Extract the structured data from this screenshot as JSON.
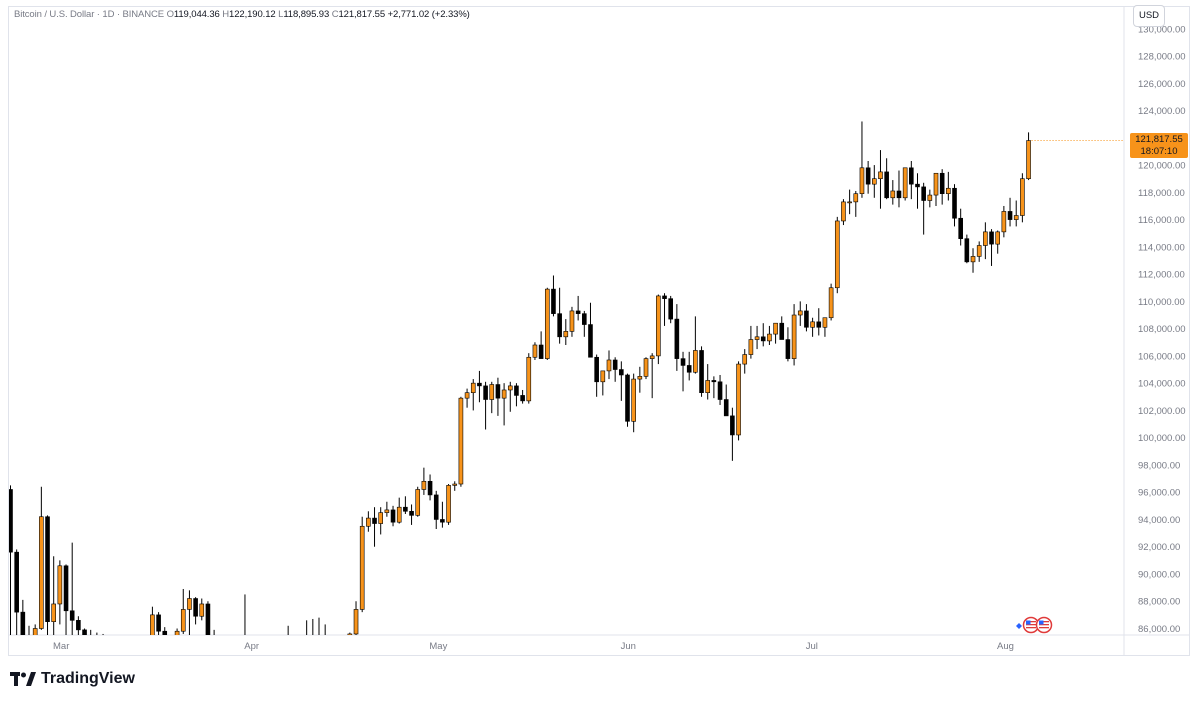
{
  "header": {
    "symbol": "Bitcoin / U.S. Dollar · 1D · BINANCE",
    "open_key": "O",
    "open": "119,044.36",
    "high_key": "H",
    "high": "122,190.12",
    "low_key": "L",
    "low": "118,895.93",
    "close_key": "C",
    "close": "121,817.55",
    "change": "+2,771.02 (+2.33%)"
  },
  "currency_button": "USD",
  "price_tag": {
    "price": "121,817.55",
    "countdown": "18:07:10"
  },
  "brand": "TradingView",
  "colors": {
    "up": "#f7931a",
    "down": "#000000",
    "accent": "#f7931a"
  },
  "chart_data": {
    "type": "candlestick",
    "ylim": [
      84800,
      130800
    ],
    "y_ticks": [
      86000,
      88000,
      90000,
      92000,
      94000,
      96000,
      98000,
      100000,
      102000,
      104000,
      106000,
      108000,
      110000,
      112000,
      114000,
      116000,
      118000,
      120000,
      122000,
      124000,
      126000,
      128000,
      130000
    ],
    "y_tick_labels": [
      "86,000.00",
      "88,000.00",
      "90,000.00",
      "92,000.00",
      "94,000.00",
      "96,000.00",
      "98,000.00",
      "100,000.00",
      "102,000.00",
      "104,000.00",
      "106,000.00",
      "108,000.00",
      "110,000.00",
      "112,000.00",
      "114,000.00",
      "116,000.00",
      "118,000.00",
      "120,000.00",
      "122,000.00",
      "124,000.00",
      "126,000.00",
      "128,000.00",
      "130,000.00"
    ],
    "x_labels": [
      {
        "label": "Mar",
        "index": 3
      },
      {
        "label": "Apr",
        "index": 34
      },
      {
        "label": "May",
        "index": 64
      },
      {
        "label": "Jun",
        "index": 95
      },
      {
        "label": "Jul",
        "index": 125
      },
      {
        "label": "Aug",
        "index": 156
      }
    ],
    "candles": [
      [
        96200,
        96500,
        84500,
        91600
      ],
      [
        91600,
        91800,
        84500,
        87200
      ],
      [
        87200,
        88100,
        84000,
        85300
      ],
      [
        85300,
        86200,
        84000,
        85100
      ],
      [
        85300,
        86300,
        84200,
        86000
      ],
      [
        86000,
        96400,
        85900,
        94200
      ],
      [
        94200,
        94300,
        84000,
        86500
      ],
      [
        86500,
        91300,
        84500,
        87800
      ],
      [
        87800,
        91000,
        86300,
        90600
      ],
      [
        90600,
        90700,
        84500,
        87300
      ],
      [
        87300,
        92300,
        84500,
        86600
      ],
      [
        86600,
        86900,
        84000,
        85900
      ],
      [
        85900,
        86000,
        84200,
        85500
      ],
      [
        85500,
        85900,
        84500,
        85200
      ],
      [
        85200,
        85700,
        84400,
        85000
      ],
      [
        85000,
        85600,
        84300,
        84900
      ],
      [
        84900,
        85300,
        84100,
        84700
      ],
      [
        84700,
        85100,
        84000,
        84900
      ],
      [
        84900,
        85200,
        84100,
        84600
      ],
      [
        84600,
        85100,
        84200,
        84800
      ],
      [
        84800,
        85200,
        84100,
        84900
      ],
      [
        84900,
        85300,
        84300,
        84700
      ],
      [
        84700,
        85100,
        84200,
        84900
      ],
      [
        84900,
        87600,
        84600,
        87000
      ],
      [
        87000,
        87200,
        84500,
        85800
      ],
      [
        85800,
        86100,
        84300,
        85100
      ],
      [
        85100,
        85500,
        84000,
        84700
      ],
      [
        84700,
        86000,
        84500,
        85800
      ],
      [
        85800,
        88900,
        85600,
        87400
      ],
      [
        87400,
        88800,
        85000,
        88200
      ],
      [
        88200,
        88300,
        86300,
        86900
      ],
      [
        86900,
        88200,
        86600,
        87800
      ],
      [
        87800,
        88000,
        84000,
        85500
      ],
      [
        85500,
        85900,
        84600,
        84900
      ],
      [
        84900,
        85300,
        84100,
        84800
      ],
      [
        84800,
        85100,
        84200,
        84900
      ],
      [
        84900,
        85200,
        84000,
        84500
      ],
      [
        84500,
        84900,
        84100,
        84700
      ],
      [
        84700,
        88500,
        84200,
        84800
      ],
      [
        84800,
        85100,
        84000,
        84600
      ],
      [
        84600,
        85000,
        84200,
        84800
      ],
      [
        84800,
        85300,
        84300,
        84700
      ],
      [
        84700,
        85100,
        84000,
        84900
      ],
      [
        84900,
        85200,
        84200,
        84600
      ],
      [
        84600,
        85000,
        84100,
        84800
      ],
      [
        84800,
        86200,
        84500,
        84900
      ],
      [
        84900,
        85300,
        84100,
        84700
      ],
      [
        84700,
        85100,
        84300,
        84800
      ],
      [
        84800,
        86600,
        84400,
        84900
      ],
      [
        84900,
        86700,
        84300,
        85000
      ],
      [
        85000,
        86800,
        84600,
        85200
      ],
      [
        85200,
        86300,
        84600,
        84800
      ],
      [
        84800,
        85300,
        84200,
        84700
      ],
      [
        84700,
        85200,
        84300,
        84900
      ],
      [
        84900,
        85300,
        84400,
        84800
      ],
      [
        84800,
        85700,
        84500,
        85600
      ],
      [
        85600,
        88000,
        85300,
        87400
      ],
      [
        87400,
        94200,
        87200,
        93500
      ],
      [
        93500,
        94600,
        93100,
        94100
      ],
      [
        94100,
        94900,
        92000,
        93700
      ],
      [
        93700,
        94900,
        92900,
        94500
      ],
      [
        94500,
        95300,
        94200,
        94700
      ],
      [
        94700,
        95000,
        93500,
        93800
      ],
      [
        93800,
        95600,
        93700,
        94900
      ],
      [
        94900,
        95700,
        94400,
        94600
      ],
      [
        94600,
        95100,
        93600,
        94300
      ],
      [
        94300,
        96400,
        94200,
        96200
      ],
      [
        96200,
        97800,
        95800,
        96800
      ],
      [
        96800,
        97300,
        95400,
        95800
      ],
      [
        95800,
        96100,
        93300,
        94000
      ],
      [
        94000,
        95300,
        93400,
        93800
      ],
      [
        93800,
        96600,
        93600,
        96500
      ],
      [
        96500,
        96800,
        96100,
        96600
      ],
      [
        96600,
        103000,
        96400,
        102900
      ],
      [
        102900,
        103600,
        102200,
        103300
      ],
      [
        103300,
        104300,
        102000,
        104000
      ],
      [
        104000,
        104900,
        102600,
        103800
      ],
      [
        103800,
        104100,
        100600,
        102800
      ],
      [
        102800,
        104100,
        101800,
        103900
      ],
      [
        103900,
        104400,
        101600,
        102900
      ],
      [
        102900,
        104000,
        100900,
        103500
      ],
      [
        103500,
        104100,
        101900,
        103800
      ],
      [
        103800,
        104000,
        102300,
        103100
      ],
      [
        103100,
        103500,
        102500,
        102700
      ],
      [
        102700,
        106200,
        102500,
        105900
      ],
      [
        105900,
        107000,
        105700,
        106800
      ],
      [
        106800,
        107800,
        105900,
        105800
      ],
      [
        105800,
        111000,
        105700,
        110900
      ],
      [
        110900,
        111900,
        108900,
        109100
      ],
      [
        109100,
        111000,
        106900,
        107400
      ],
      [
        107400,
        108700,
        106800,
        107800
      ],
      [
        107800,
        109600,
        107400,
        109300
      ],
      [
        109300,
        110400,
        108600,
        109100
      ],
      [
        109100,
        109300,
        107400,
        108300
      ],
      [
        108300,
        109900,
        106000,
        105900
      ],
      [
        105900,
        106100,
        103000,
        104100
      ],
      [
        104100,
        104800,
        103100,
        104900
      ],
      [
        104900,
        106400,
        104300,
        105700
      ],
      [
        105700,
        105900,
        104100,
        105000
      ],
      [
        105000,
        105600,
        102700,
        104600
      ],
      [
        104600,
        104700,
        100800,
        101200
      ],
      [
        101200,
        104700,
        100400,
        104300
      ],
      [
        104300,
        105200,
        103300,
        104500
      ],
      [
        104500,
        105900,
        104300,
        105800
      ],
      [
        105800,
        106200,
        102900,
        106000
      ],
      [
        106000,
        110500,
        105400,
        110400
      ],
      [
        110400,
        110600,
        108200,
        110200
      ],
      [
        110200,
        110400,
        108400,
        108700
      ],
      [
        108700,
        109800,
        104900,
        105800
      ],
      [
        105800,
        106300,
        103400,
        105300
      ],
      [
        105300,
        106300,
        104200,
        104800
      ],
      [
        104800,
        108900,
        104700,
        106400
      ],
      [
        106400,
        106700,
        103000,
        103300
      ],
      [
        103300,
        105400,
        102800,
        104200
      ],
      [
        104200,
        104500,
        102900,
        104100
      ],
      [
        104100,
        104600,
        102400,
        102800
      ],
      [
        102800,
        103900,
        101900,
        101600
      ],
      [
        101600,
        102200,
        98300,
        100200
      ],
      [
        100200,
        105600,
        99800,
        105400
      ],
      [
        105400,
        106500,
        104700,
        106100
      ],
      [
        106100,
        108200,
        105800,
        107200
      ],
      [
        107200,
        108200,
        106500,
        107400
      ],
      [
        107400,
        108400,
        106700,
        107100
      ],
      [
        107100,
        108200,
        106800,
        107600
      ],
      [
        107600,
        108300,
        106900,
        108400
      ],
      [
        108400,
        108900,
        107500,
        107200
      ],
      [
        107200,
        108100,
        105600,
        105800
      ],
      [
        105800,
        109800,
        105300,
        109000
      ],
      [
        109000,
        110000,
        108200,
        109300
      ],
      [
        109300,
        109800,
        107800,
        108100
      ],
      [
        108100,
        108800,
        107400,
        108500
      ],
      [
        108500,
        109500,
        107500,
        108100
      ],
      [
        108100,
        108600,
        107400,
        108800
      ],
      [
        108800,
        111300,
        108600,
        111000
      ],
      [
        111000,
        116200,
        110600,
        115900
      ],
      [
        115900,
        117500,
        115600,
        117300
      ],
      [
        117300,
        118200,
        116400,
        117300
      ],
      [
        117300,
        118100,
        116200,
        117900
      ],
      [
        117900,
        123200,
        117600,
        119800
      ],
      [
        119800,
        120300,
        117900,
        118600
      ],
      [
        118600,
        120000,
        117600,
        119000
      ],
      [
        119000,
        121100,
        116800,
        119500
      ],
      [
        119500,
        120500,
        117500,
        117600
      ],
      [
        117600,
        118900,
        117100,
        118100
      ],
      [
        118100,
        119600,
        116900,
        117600
      ],
      [
        117600,
        119800,
        117400,
        119800
      ],
      [
        119800,
        120300,
        117500,
        118600
      ],
      [
        118600,
        119400,
        116800,
        118400
      ],
      [
        118400,
        118700,
        114900,
        117400
      ],
      [
        117400,
        118200,
        116900,
        117800
      ],
      [
        117800,
        119300,
        117000,
        119400
      ],
      [
        119400,
        119700,
        117100,
        117900
      ],
      [
        117900,
        119500,
        117400,
        118300
      ],
      [
        118300,
        118600,
        115500,
        116100
      ],
      [
        116100,
        116800,
        114100,
        114600
      ],
      [
        114600,
        114900,
        112800,
        112900
      ],
      [
        112900,
        113900,
        112100,
        113300
      ],
      [
        113300,
        114400,
        112900,
        114100
      ],
      [
        114100,
        115800,
        113100,
        115100
      ],
      [
        115100,
        115300,
        112600,
        114200
      ],
      [
        114200,
        115200,
        113500,
        115100
      ],
      [
        115100,
        117000,
        114700,
        116600
      ],
      [
        116600,
        117600,
        115500,
        116000
      ],
      [
        116000,
        117400,
        115500,
        116300
      ],
      [
        116300,
        119400,
        115800,
        119000
      ],
      [
        119000,
        122400,
        118900,
        121800
      ]
    ]
  }
}
